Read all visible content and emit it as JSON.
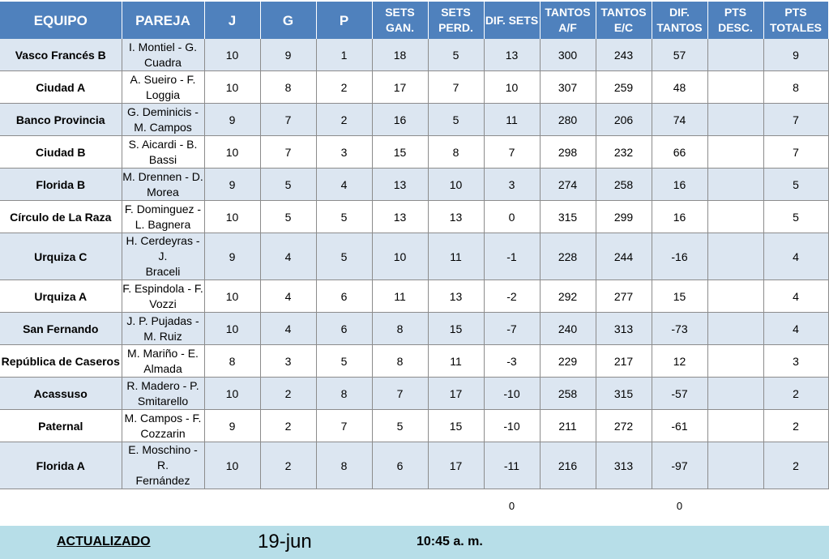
{
  "headers": {
    "equipo": "EQUIPO",
    "pareja": "PAREJA",
    "j": "J",
    "g": "G",
    "p": "P",
    "sets_gan": [
      "SETS",
      "GAN."
    ],
    "sets_perd": [
      "SETS",
      "PERD."
    ],
    "dif_sets": "DIF. SETS",
    "tantos_af": [
      "TANTOS",
      "A/F"
    ],
    "tantos_ec": [
      "TANTOS",
      "E/C"
    ],
    "dif_tantos": [
      "DIF.",
      "TANTOS"
    ],
    "pts_desc": [
      "PTS",
      "DESC."
    ],
    "pts_totales": [
      "PTS",
      "TOTALES"
    ]
  },
  "rows": [
    {
      "team": "Vasco Francés B",
      "pair": [
        "I. Montiel - G.",
        "Cuadra"
      ],
      "j": "10",
      "g": "9",
      "p": "1",
      "sg": "18",
      "sp": "5",
      "ds": "13",
      "taf": "300",
      "tec": "243",
      "dt": "57",
      "pd": "",
      "pt": "9"
    },
    {
      "team": "Ciudad A",
      "pair": [
        "A. Sueiro - F.",
        "Loggia"
      ],
      "j": "10",
      "g": "8",
      "p": "2",
      "sg": "17",
      "sp": "7",
      "ds": "10",
      "taf": "307",
      "tec": "259",
      "dt": "48",
      "pd": "",
      "pt": "8"
    },
    {
      "team": "Banco Provincia",
      "pair": [
        "G. Deminicis -",
        "M. Campos"
      ],
      "j": "9",
      "g": "7",
      "p": "2",
      "sg": "16",
      "sp": "5",
      "ds": "11",
      "taf": "280",
      "tec": "206",
      "dt": "74",
      "pd": "",
      "pt": "7"
    },
    {
      "team": "Ciudad B",
      "pair": [
        "S. Aicardi - B.",
        "Bassi"
      ],
      "j": "10",
      "g": "7",
      "p": "3",
      "sg": "15",
      "sp": "8",
      "ds": "7",
      "taf": "298",
      "tec": "232",
      "dt": "66",
      "pd": "",
      "pt": "7"
    },
    {
      "team": "Florida B",
      "pair": [
        "M. Drennen - D.",
        "Morea"
      ],
      "j": "9",
      "g": "5",
      "p": "4",
      "sg": "13",
      "sp": "10",
      "ds": "3",
      "taf": "274",
      "tec": "258",
      "dt": "16",
      "pd": "",
      "pt": "5"
    },
    {
      "team": "Círculo de La Raza",
      "pair": [
        "F. Dominguez -",
        "L. Bagnera"
      ],
      "j": "10",
      "g": "5",
      "p": "5",
      "sg": "13",
      "sp": "13",
      "ds": "0",
      "taf": "315",
      "tec": "299",
      "dt": "16",
      "pd": "",
      "pt": "5"
    },
    {
      "team": "Urquiza C",
      "pair": [
        "H. Cerdeyras - J.",
        "Braceli"
      ],
      "j": "9",
      "g": "4",
      "p": "5",
      "sg": "10",
      "sp": "11",
      "ds": "-1",
      "taf": "228",
      "tec": "244",
      "dt": "-16",
      "pd": "",
      "pt": "4"
    },
    {
      "team": "Urquiza A",
      "pair": [
        "F. Espindola - F.",
        "Vozzi"
      ],
      "j": "10",
      "g": "4",
      "p": "6",
      "sg": "11",
      "sp": "13",
      "ds": "-2",
      "taf": "292",
      "tec": "277",
      "dt": "15",
      "pd": "",
      "pt": "4"
    },
    {
      "team": "San Fernando",
      "pair": [
        "J. P. Pujadas -",
        "M. Ruiz"
      ],
      "j": "10",
      "g": "4",
      "p": "6",
      "sg": "8",
      "sp": "15",
      "ds": "-7",
      "taf": "240",
      "tec": "313",
      "dt": "-73",
      "pd": "",
      "pt": "4"
    },
    {
      "team": "República de Caseros",
      "pair": [
        "M. Mariño - E.",
        "Almada"
      ],
      "j": "8",
      "g": "3",
      "p": "5",
      "sg": "8",
      "sp": "11",
      "ds": "-3",
      "taf": "229",
      "tec": "217",
      "dt": "12",
      "pd": "",
      "pt": "3"
    },
    {
      "team": "Acassuso",
      "pair": [
        "R. Madero - P.",
        "Smitarello"
      ],
      "j": "10",
      "g": "2",
      "p": "8",
      "sg": "7",
      "sp": "17",
      "ds": "-10",
      "taf": "258",
      "tec": "315",
      "dt": "-57",
      "pd": "",
      "pt": "2"
    },
    {
      "team": "Paternal",
      "pair": [
        "M. Campos - F.",
        "Cozzarin"
      ],
      "j": "9",
      "g": "2",
      "p": "7",
      "sg": "5",
      "sp": "15",
      "ds": "-10",
      "taf": "211",
      "tec": "272",
      "dt": "-61",
      "pd": "",
      "pt": "2"
    },
    {
      "team": "Florida A",
      "pair": [
        "E. Moschino - R.",
        "Fernández"
      ],
      "j": "10",
      "g": "2",
      "p": "8",
      "sg": "6",
      "sp": "17",
      "ds": "-11",
      "taf": "216",
      "tec": "313",
      "dt": "-97",
      "pd": "",
      "pt": "2"
    }
  ],
  "totals": {
    "dif_sets": "0",
    "dif_tantos": "0"
  },
  "footer": {
    "label": "ACTUALIZADO",
    "date": "19-jun",
    "time": "10:45 a. m."
  },
  "colors": {
    "header_bg": "#4f81bd",
    "row_alt_bg": "#dce6f1",
    "footer_bg": "#b7dee8"
  }
}
